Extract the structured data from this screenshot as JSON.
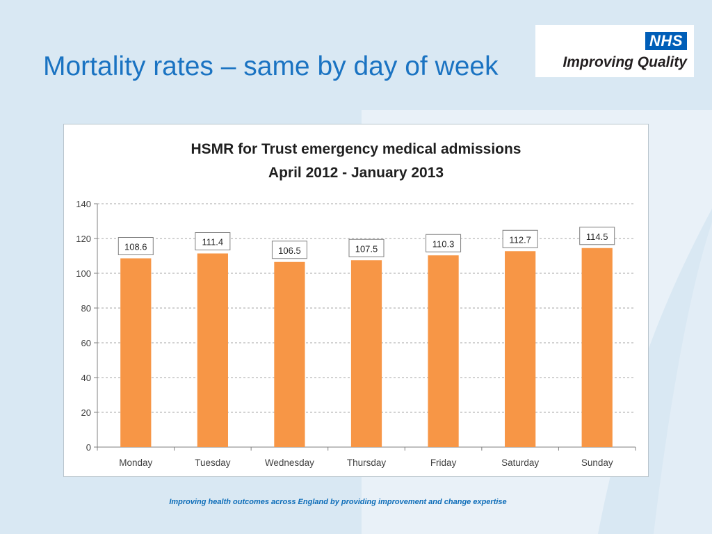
{
  "slide": {
    "title": "Mortality rates – same by day of week",
    "footer": "Improving health outcomes across England by providing improvement and change expertise"
  },
  "logo": {
    "badge": "NHS",
    "subtitle": "Improving Quality"
  },
  "colors": {
    "background": "#d9e8f3",
    "title": "#1a73c2",
    "bar": "#f79646",
    "nhs_blue": "#005eb8",
    "footer": "#0c6cb8"
  },
  "chart_data": {
    "type": "bar",
    "title": "HSMR for Trust emergency medical admissions",
    "subtitle": "April 2012 - January 2013",
    "categories": [
      "Monday",
      "Tuesday",
      "Wednesday",
      "Thursday",
      "Friday",
      "Saturday",
      "Sunday"
    ],
    "values": [
      108.6,
      111.4,
      106.5,
      107.5,
      110.3,
      112.7,
      114.5
    ],
    "data_labels": [
      "108.6",
      "111.4",
      "106.5",
      "107.5",
      "110.3",
      "112.7",
      "114.5"
    ],
    "ylim": [
      0,
      140
    ],
    "yticks": [
      0,
      20,
      40,
      60,
      80,
      100,
      120,
      140
    ],
    "ytick_labels": [
      "0",
      "20",
      "40",
      "60",
      "80",
      "100",
      "120",
      "140"
    ],
    "grid": true,
    "legend": "none",
    "xlabel": "",
    "ylabel": ""
  }
}
